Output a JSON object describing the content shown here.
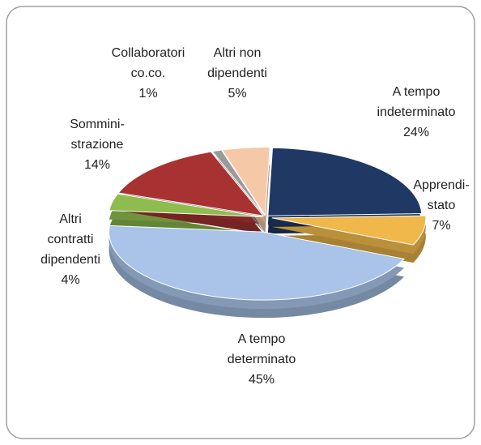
{
  "chart_data": {
    "type": "pie",
    "categories": [
      "A tempo\nindeterminato",
      "Apprendi-\nstato",
      "A tempo\ndeterminato",
      "Altri\ncontratti\ndipendenti",
      "Sommini-\nstrazione",
      "Collaboratori\nco.co.",
      "Altri non\ndipendenti"
    ],
    "values": [
      24,
      7,
      45,
      4,
      14,
      1,
      5
    ],
    "value_labels": [
      "24%",
      "7%",
      "45%",
      "4%",
      "14%",
      "1%",
      "5%"
    ],
    "colors": [
      "#1f3864",
      "#f0b84a",
      "#a9c4e8",
      "#8fbc4f",
      "#a83232",
      "#9a9a9a",
      "#f5c9a8"
    ]
  }
}
